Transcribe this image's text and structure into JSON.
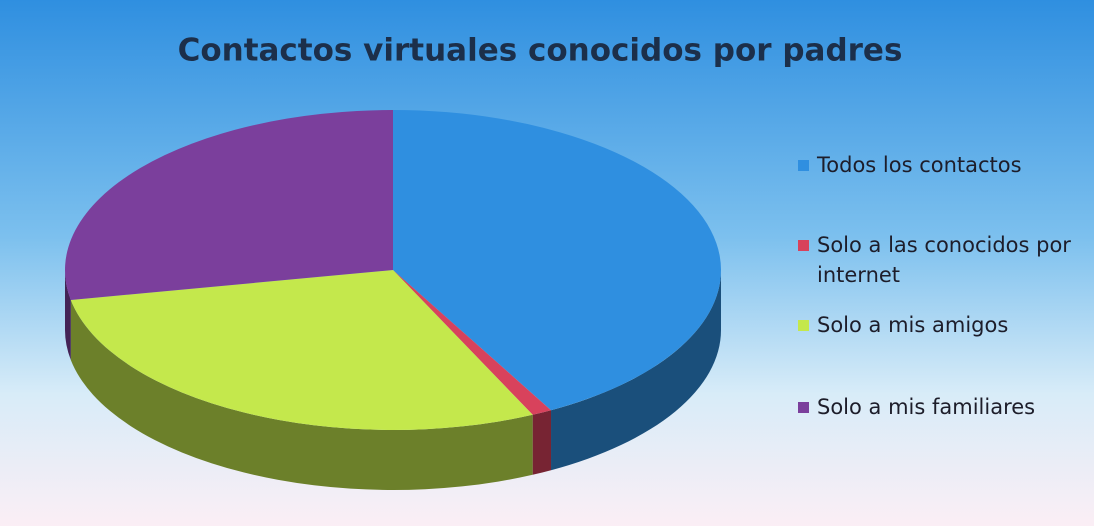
{
  "chart_data": {
    "type": "pie",
    "title": "Contactos virtuales conocidos por padres",
    "categories": [
      "Todos los contactos",
      "Solo a las conocidos por internet",
      "Solo a mis amigos",
      "Solo a mis familiares"
    ],
    "values": [
      42,
      1,
      29,
      28
    ],
    "colors": [
      "#2f8fe0",
      "#d8425c",
      "#c4e84c",
      "#7b3f9c"
    ],
    "legend": "right"
  }
}
